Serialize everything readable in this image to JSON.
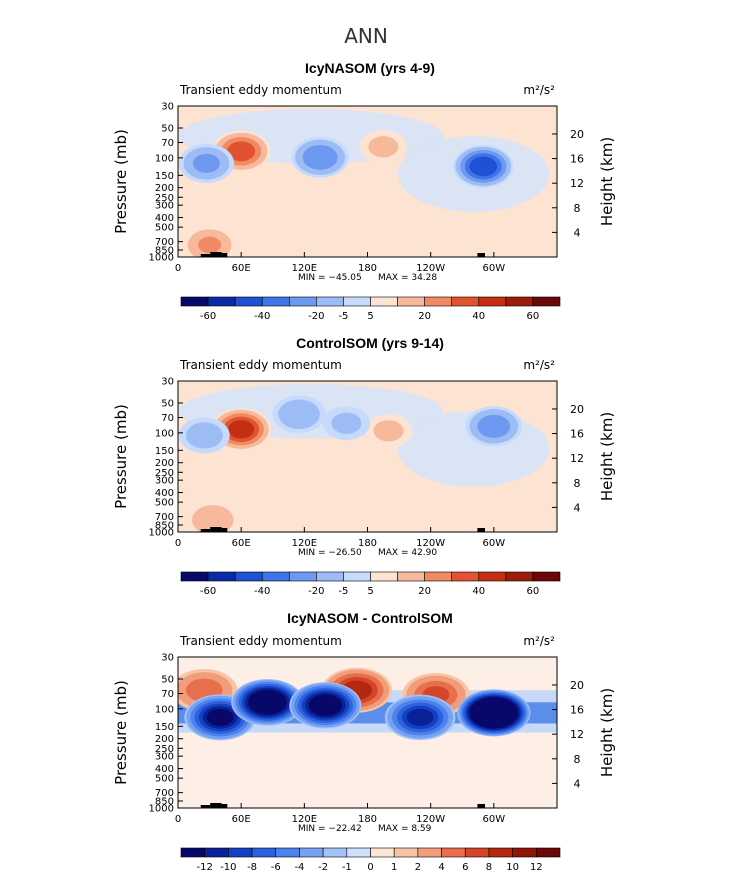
{
  "figure_title": "ANN",
  "chart_data": [
    {
      "type": "contour",
      "title": "IcyNASOM (yrs 4-9)",
      "left_label": "Transient eddy momentum",
      "units": "m²/s²",
      "ylabel": "Pressure (mb)",
      "ylabel_right": "Height (km)",
      "x_ticks": [
        "0",
        "60E",
        "120E",
        "180",
        "120W",
        "60W"
      ],
      "y_ticks": [
        "30",
        "50",
        "70",
        "100",
        "150",
        "200",
        "250",
        "300",
        "400",
        "500",
        "700",
        "850",
        "1000"
      ],
      "height_ticks": [
        "20",
        "16",
        "12",
        "8",
        "4"
      ],
      "min_label": "MIN = −45.05",
      "max_label": "MAX = 34.28",
      "levels": [
        -60,
        -50,
        -40,
        -30,
        -20,
        -10,
        -5,
        5,
        10,
        20,
        30,
        40,
        50,
        60
      ],
      "colorbar_labels": [
        "-60",
        "-40",
        "-20",
        "-5",
        "5",
        "20",
        "40",
        "60"
      ],
      "features": [
        {
          "lon": 60,
          "lev": 0.3,
          "value": 34
        },
        {
          "lon": 30,
          "lev": 0.92,
          "value": 20
        },
        {
          "lon": 195,
          "lev": 0.27,
          "value": 12
        },
        {
          "lon": 27,
          "lev": 0.38,
          "value": -22
        },
        {
          "lon": 135,
          "lev": 0.34,
          "value": -28
        },
        {
          "lon": 290,
          "lev": 0.4,
          "value": -45
        }
      ]
    },
    {
      "type": "contour",
      "title": "ControlSOM (yrs 9-14)",
      "left_label": "Transient eddy momentum",
      "units": "m²/s²",
      "ylabel": "Pressure (mb)",
      "ylabel_right": "Height (km)",
      "x_ticks": [
        "0",
        "60E",
        "120E",
        "180",
        "120W",
        "60W"
      ],
      "y_ticks": [
        "30",
        "50",
        "70",
        "100",
        "150",
        "200",
        "250",
        "300",
        "400",
        "500",
        "700",
        "850",
        "1000"
      ],
      "height_ticks": [
        "20",
        "16",
        "12",
        "8",
        "4"
      ],
      "min_label": "MIN = −26.50",
      "max_label": "MAX = 42.90",
      "levels": [
        -60,
        -50,
        -40,
        -30,
        -20,
        -10,
        -5,
        5,
        10,
        20,
        30,
        40,
        50,
        60
      ],
      "colorbar_labels": [
        "-60",
        "-40",
        "-20",
        "-5",
        "5",
        "20",
        "40",
        "60"
      ],
      "features": [
        {
          "lon": 60,
          "lev": 0.32,
          "value": 43
        },
        {
          "lon": 33,
          "lev": 0.92,
          "value": 18
        },
        {
          "lon": 200,
          "lev": 0.33,
          "value": 12
        },
        {
          "lon": 25,
          "lev": 0.36,
          "value": -15
        },
        {
          "lon": 115,
          "lev": 0.22,
          "value": -18
        },
        {
          "lon": 160,
          "lev": 0.28,
          "value": -12
        },
        {
          "lon": 300,
          "lev": 0.3,
          "value": -26
        }
      ]
    },
    {
      "type": "contour",
      "title": "IcyNASOM - ControlSOM",
      "left_label": "Transient eddy momentum",
      "units": "m²/s²",
      "ylabel": "Pressure (mb)",
      "ylabel_right": "Height (km)",
      "x_ticks": [
        "0",
        "60E",
        "120E",
        "180",
        "120W",
        "60W"
      ],
      "y_ticks": [
        "30",
        "50",
        "70",
        "100",
        "150",
        "200",
        "250",
        "300",
        "400",
        "500",
        "700",
        "850",
        "1000"
      ],
      "height_ticks": [
        "20",
        "16",
        "12",
        "8",
        "4"
      ],
      "min_label": "MIN = −22.42",
      "max_label": "MAX = 8.59",
      "levels": [
        -12,
        -10,
        -8,
        -6,
        -4,
        -2,
        -1,
        0,
        1,
        2,
        4,
        6,
        8,
        10,
        12
      ],
      "colorbar_labels": [
        "-12",
        "-10",
        "-8",
        "-6",
        "-4",
        "-2",
        "-1",
        "0",
        "1",
        "2",
        "4",
        "6",
        "8",
        "10",
        "12"
      ],
      "features": [
        {
          "lon": 170,
          "lev": 0.22,
          "value": 8.6
        },
        {
          "lon": 25,
          "lev": 0.22,
          "value": 5
        },
        {
          "lon": 245,
          "lev": 0.25,
          "value": 6
        },
        {
          "lon": 40,
          "lev": 0.4,
          "value": -12
        },
        {
          "lon": 85,
          "lev": 0.3,
          "value": -16
        },
        {
          "lon": 140,
          "lev": 0.32,
          "value": -14
        },
        {
          "lon": 230,
          "lev": 0.4,
          "value": -10
        },
        {
          "lon": 300,
          "lev": 0.37,
          "value": -22
        }
      ]
    }
  ]
}
